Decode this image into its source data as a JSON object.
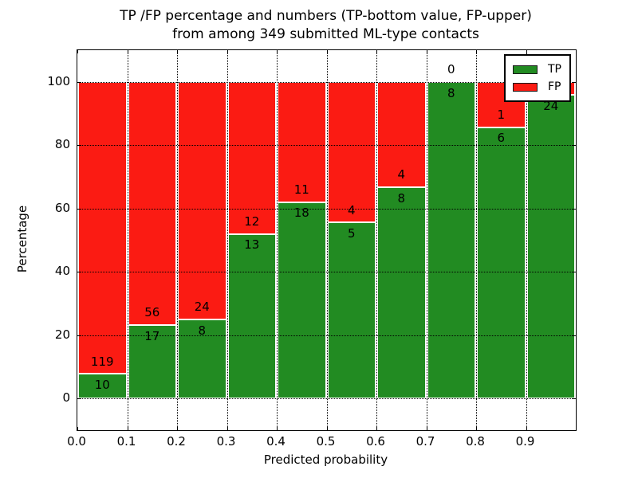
{
  "title": {
    "line1": "TP /FP percentage and numbers (TP-bottom value, FP-upper)",
    "line2": "from among 349 submitted ML-type contacts"
  },
  "axes": {
    "xlabel": "Predicted probability",
    "ylabel": "Percentage",
    "xtick_labels": [
      "0.0",
      "0.1",
      "0.2",
      "0.3",
      "0.4",
      "0.5",
      "0.6",
      "0.7",
      "0.8",
      "0.9"
    ],
    "ytick_labels": [
      "0",
      "20",
      "40",
      "60",
      "80",
      "100"
    ]
  },
  "legend": {
    "entries": [
      {
        "label": "TP",
        "color": "#228b22"
      },
      {
        "label": "FP",
        "color": "#fb1b13"
      }
    ]
  },
  "chart_data": {
    "type": "bar",
    "stacked": true,
    "normalized_to_percent": true,
    "title": "TP /FP percentage and numbers (TP-bottom value, FP-upper) from among 349 submitted ML-type contacts",
    "xlabel": "Predicted probability",
    "ylabel": "Percentage",
    "total_submitted_contacts": 349,
    "bin_start": [
      0.0,
      0.1,
      0.2,
      0.3,
      0.4,
      0.5,
      0.6,
      0.7,
      0.8,
      0.9
    ],
    "bin_width": 0.1,
    "series": [
      {
        "name": "TP",
        "color": "#228b22",
        "counts": [
          10,
          17,
          8,
          13,
          18,
          5,
          8,
          8,
          6,
          24
        ],
        "labels": [
          "10",
          "17",
          "8",
          "13",
          "18",
          "5",
          "8",
          "8",
          "6",
          "24"
        ]
      },
      {
        "name": "FP",
        "color": "#fb1b13",
        "counts": [
          119,
          56,
          24,
          12,
          11,
          4,
          4,
          0,
          1,
          1
        ],
        "labels": [
          "119",
          "56",
          "24",
          "12",
          "11",
          "4",
          "4",
          "0",
          "1",
          "1"
        ]
      }
    ],
    "xlim": [
      0.0,
      1.0
    ],
    "ylim": [
      -10,
      110
    ],
    "grid": "dotted black, at all x and y ticks, drawn over bars",
    "bar_edge_color": "#ffffff",
    "legend_position": "upper right"
  }
}
